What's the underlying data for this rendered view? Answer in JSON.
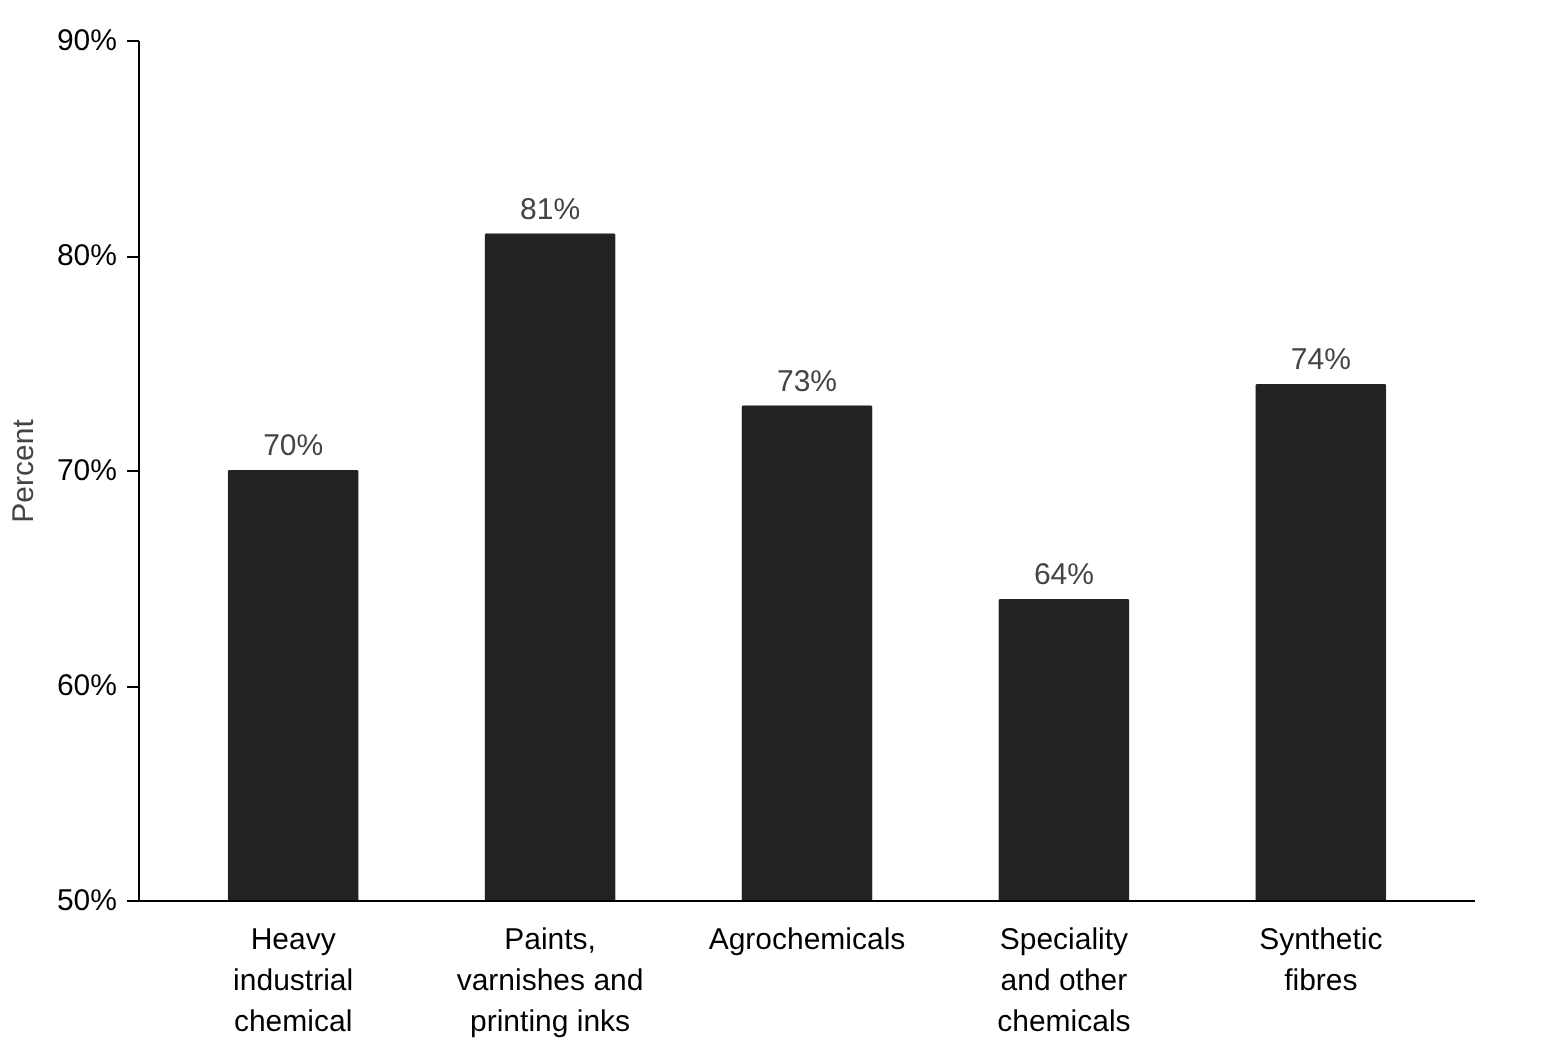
{
  "chart_data": {
    "type": "bar",
    "ylabel": "Percent",
    "categories": [
      "Heavy\nindustrial\nchemical",
      "Paints,\nvarnishes and\nprinting inks",
      "Agrochemicals",
      "Speciality\nand other\nchemicals",
      "Synthetic\nfibres"
    ],
    "values": [
      70,
      81,
      73,
      64,
      74
    ],
    "value_labels": [
      "70%",
      "81%",
      "73%",
      "64%",
      "74%"
    ],
    "color": "#222222",
    "ylim": [
      50,
      90
    ],
    "yticks": [
      {
        "value": 50,
        "label": "50%"
      },
      {
        "value": 60,
        "label": "60%"
      },
      {
        "value": 70,
        "label": "70%"
      },
      {
        "value": 80,
        "label": "80%"
      },
      {
        "value": 90,
        "label": "90%"
      }
    ],
    "grid": false
  }
}
